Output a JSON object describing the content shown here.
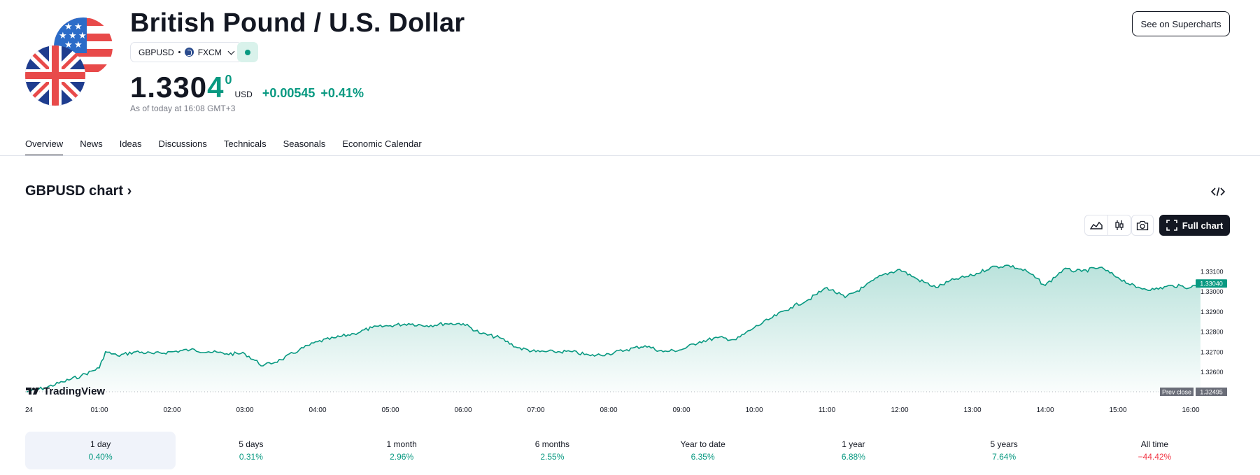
{
  "header": {
    "title": "British Pound / U.S. Dollar",
    "symbol": "GBPUSD",
    "exchange": "FXCM",
    "status_color": "#089981",
    "price_main": "1.330",
    "price_last_digit": "4",
    "price_superscript": "0",
    "currency": "USD",
    "change_abs": "+0.00545",
    "change_pct": "+0.41%",
    "as_of": "As of today at 16:08 GMT+3",
    "supercharts_label": "See on Supercharts",
    "flags": [
      "uk-flag-icon",
      "us-flag-icon"
    ]
  },
  "tabs": [
    {
      "label": "Overview",
      "active": true
    },
    {
      "label": "News",
      "active": false
    },
    {
      "label": "Ideas",
      "active": false
    },
    {
      "label": "Discussions",
      "active": false
    },
    {
      "label": "Technicals",
      "active": false
    },
    {
      "label": "Seasonals",
      "active": false
    },
    {
      "label": "Economic Calendar",
      "active": false
    }
  ],
  "chart_section": {
    "title": "GBPUSD chart",
    "full_chart_label": "Full chart",
    "watermark": "TradingView",
    "icons": [
      "embed-code-icon",
      "area-chart-icon",
      "candles-icon",
      "camera-icon",
      "fullscreen-icon"
    ]
  },
  "colors": {
    "accent": "#089981",
    "negative": "#f23645",
    "text": "#131722",
    "muted": "#787b86"
  },
  "chart_data": {
    "type": "area",
    "x_tick_labels": [
      "24",
      "01:00",
      "02:00",
      "03:00",
      "04:00",
      "05:00",
      "06:00",
      "07:00",
      "08:00",
      "09:00",
      "10:00",
      "11:00",
      "12:00",
      "13:00",
      "14:00",
      "15:00",
      "16:00"
    ],
    "y_tick_labels": [
      "1.33100",
      "1.33000",
      "1.32900",
      "1.32800",
      "1.32700",
      "1.32600"
    ],
    "ylim": [
      1.32495,
      1.3314
    ],
    "x": [
      "00:00",
      "00:15",
      "00:30",
      "00:45",
      "01:00",
      "01:05",
      "01:15",
      "01:30",
      "01:45",
      "02:00",
      "02:15",
      "02:30",
      "02:45",
      "03:00",
      "03:15",
      "03:30",
      "03:45",
      "04:00",
      "04:15",
      "04:30",
      "04:45",
      "05:00",
      "05:15",
      "05:30",
      "05:45",
      "06:00",
      "06:15",
      "06:30",
      "06:45",
      "07:00",
      "07:15",
      "07:30",
      "07:45",
      "08:00",
      "08:15",
      "08:30",
      "08:45",
      "09:00",
      "09:15",
      "09:30",
      "09:45",
      "10:00",
      "10:15",
      "10:30",
      "10:45",
      "11:00",
      "11:15",
      "11:30",
      "11:45",
      "12:00",
      "12:15",
      "12:30",
      "12:45",
      "13:00",
      "13:15",
      "13:30",
      "13:45",
      "14:00",
      "14:15",
      "14:30",
      "14:45",
      "15:00",
      "15:15",
      "15:30",
      "15:45",
      "16:00",
      "16:08"
    ],
    "series": [
      {
        "values": [
          1.325,
          1.3252,
          1.3255,
          1.3258,
          1.3262,
          1.327,
          1.3268,
          1.327,
          1.3269,
          1.327,
          1.3271,
          1.327,
          1.3269,
          1.3269,
          1.3263,
          1.3266,
          1.3271,
          1.3275,
          1.3277,
          1.3279,
          1.3282,
          1.3283,
          1.3284,
          1.3283,
          1.3284,
          1.3284,
          1.3279,
          1.3277,
          1.3272,
          1.327,
          1.327,
          1.327,
          1.3268,
          1.3269,
          1.3271,
          1.3273,
          1.327,
          1.3271,
          1.3275,
          1.3277,
          1.3276,
          1.3282,
          1.3287,
          1.3292,
          1.3296,
          1.3302,
          1.3297,
          1.3302,
          1.3308,
          1.3311,
          1.3306,
          1.3302,
          1.3306,
          1.3308,
          1.3312,
          1.3313,
          1.331,
          1.3303,
          1.3311,
          1.331,
          1.3312,
          1.3307,
          1.3302,
          1.3301,
          1.3303,
          1.3302,
          1.3304
        ]
      }
    ],
    "last_value_label": "1.33040",
    "prev_close": {
      "label": "Prev close",
      "value": "1.32495"
    },
    "grid": false
  },
  "periods": [
    {
      "label": "1 day",
      "value": "0.40%",
      "sign": "pos",
      "active": true
    },
    {
      "label": "5 days",
      "value": "0.31%",
      "sign": "pos",
      "active": false
    },
    {
      "label": "1 month",
      "value": "2.96%",
      "sign": "pos",
      "active": false
    },
    {
      "label": "6 months",
      "value": "2.55%",
      "sign": "pos",
      "active": false
    },
    {
      "label": "Year to date",
      "value": "6.35%",
      "sign": "pos",
      "active": false
    },
    {
      "label": "1 year",
      "value": "6.88%",
      "sign": "pos",
      "active": false
    },
    {
      "label": "5 years",
      "value": "7.64%",
      "sign": "pos",
      "active": false
    },
    {
      "label": "All time",
      "value": "−44.42%",
      "sign": "neg",
      "active": false
    }
  ]
}
